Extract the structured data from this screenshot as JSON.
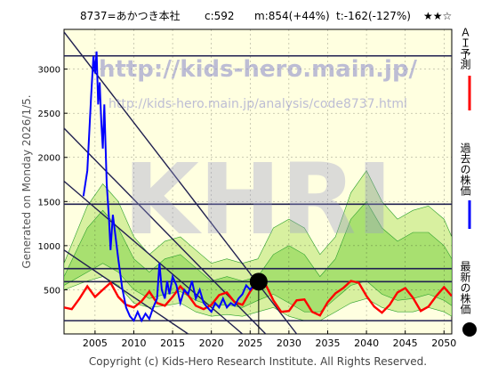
{
  "header": {
    "code_name": "8737=あかつき本社",
    "current": "c:592",
    "mid": "m:854(+44%)",
    "target": "t:-162(-127%)",
    "stars": "★★☆"
  },
  "side_label": "Generated on Monday 2026/1/5.",
  "footer": "Copyright (c) Kids-Hero Research Institute. All Rights Reserved.",
  "watermark": {
    "url1": "http://kids-hero.main.jp/",
    "url2": "http://kids-hero.main.jp/analysis/code8737.html",
    "logo": "KHRI"
  },
  "legend": [
    {
      "label": "ＡＩ予測",
      "color": "#ff0000",
      "shape": "line"
    },
    {
      "label": "過去の株価",
      "color": "#0000ff",
      "shape": "line"
    },
    {
      "label": "最新の株価",
      "color": "#000000",
      "shape": "dot"
    }
  ],
  "colors": {
    "background": "#ffffe0",
    "band_outer": "#d8f0a0",
    "band_inner": "#a8e070",
    "band_lines": "#2ca02c",
    "trend_lines": "#202050",
    "history": "#0000ff",
    "forecast": "#ff0000"
  },
  "chart_data": {
    "type": "line",
    "xlim": [
      2001,
      2051
    ],
    "ylim": [
      0,
      3450
    ],
    "xticks": [
      2005,
      2010,
      2015,
      2020,
      2025,
      2030,
      2035,
      2040,
      2045,
      2050
    ],
    "yticks": [
      500,
      1000,
      1500,
      2000,
      2500,
      3000
    ],
    "horizontal_levels": [
      150,
      592,
      740,
      1470,
      3150
    ],
    "latest": {
      "x": 2026.1,
      "y": 592
    },
    "trend_lines": [
      {
        "x": [
          2001,
          2031
        ],
        "y": [
          3420,
          0
        ]
      },
      {
        "x": [
          2001,
          2027
        ],
        "y": [
          2330,
          0
        ]
      },
      {
        "x": [
          2001,
          2024
        ],
        "y": [
          1730,
          0
        ]
      },
      {
        "x": [
          2001,
          2017
        ],
        "y": [
          950,
          0
        ]
      }
    ],
    "history": {
      "x": [
        2003.5,
        2004,
        2004.5,
        2004.8,
        2005,
        2005.2,
        2005.4,
        2005.6,
        2005.8,
        2006,
        2006.2,
        2006.5,
        2006.8,
        2007,
        2007.3,
        2008,
        2008.5,
        2009,
        2009.5,
        2010,
        2010.5,
        2011,
        2011.5,
        2012,
        2012.5,
        2013,
        2013.3,
        2013.6,
        2014,
        2014.3,
        2014.6,
        2015,
        2015.5,
        2016,
        2016.5,
        2017,
        2017.5,
        2018,
        2018.5,
        2019,
        2019.5,
        2020,
        2020.5,
        2021,
        2021.5,
        2022,
        2022.5,
        2023,
        2023.5,
        2024,
        2024.5,
        2025,
        2025.5,
        2026
      ],
      "y": [
        1560,
        1850,
        2700,
        3150,
        2950,
        3200,
        2600,
        2850,
        2400,
        2100,
        2600,
        1700,
        1300,
        950,
        1350,
        850,
        520,
        300,
        200,
        150,
        250,
        150,
        230,
        170,
        300,
        400,
        800,
        500,
        400,
        600,
        450,
        650,
        550,
        350,
        500,
        450,
        600,
        400,
        500,
        350,
        300,
        250,
        350,
        300,
        400,
        300,
        350,
        320,
        400,
        450,
        550,
        500,
        560,
        592
      ]
    },
    "forecast": {
      "x": [
        2001,
        2002,
        2003,
        2004,
        2005,
        2006,
        2007,
        2008,
        2009,
        2010,
        2011,
        2012,
        2013,
        2014,
        2015,
        2016,
        2017,
        2018,
        2019,
        2020,
        2021,
        2022,
        2023,
        2024,
        2025,
        2026,
        2027,
        2028,
        2029,
        2030,
        2031,
        2032,
        2033,
        2034,
        2035,
        2036,
        2037,
        2038,
        2039,
        2040,
        2041,
        2042,
        2043,
        2044,
        2045,
        2046,
        2047,
        2048,
        2049,
        2050,
        2051
      ],
      "y": [
        300,
        280,
        400,
        540,
        420,
        500,
        580,
        420,
        330,
        300,
        370,
        480,
        350,
        320,
        420,
        540,
        440,
        320,
        280,
        330,
        440,
        470,
        360,
        330,
        480,
        600,
        560,
        380,
        250,
        260,
        380,
        390,
        250,
        210,
        360,
        460,
        520,
        600,
        580,
        430,
        310,
        240,
        330,
        470,
        520,
        410,
        260,
        310,
        430,
        530,
        430
      ]
    },
    "band_outer": {
      "x": [
        2001,
        2004,
        2006,
        2008,
        2010,
        2012,
        2014,
        2016,
        2018,
        2020,
        2022,
        2024,
        2026,
        2028,
        2030,
        2032,
        2034,
        2036,
        2038,
        2040,
        2042,
        2044,
        2046,
        2048,
        2050,
        2051
      ],
      "upper": [
        800,
        1450,
        1700,
        1500,
        1100,
        900,
        1050,
        1100,
        950,
        800,
        850,
        800,
        850,
        1200,
        1300,
        1200,
        900,
        1100,
        1600,
        1850,
        1500,
        1300,
        1400,
        1450,
        1300,
        1100
      ],
      "lower": [
        500,
        600,
        650,
        550,
        350,
        300,
        320,
        350,
        250,
        200,
        220,
        200,
        250,
        300,
        200,
        150,
        150,
        250,
        350,
        400,
        300,
        250,
        250,
        300,
        250,
        200
      ]
    },
    "band_inner": {
      "x": [
        2001,
        2004,
        2006,
        2008,
        2010,
        2012,
        2014,
        2016,
        2018,
        2020,
        2022,
        2024,
        2026,
        2028,
        2030,
        2032,
        2034,
        2036,
        2038,
        2040,
        2042,
        2044,
        2046,
        2048,
        2050,
        2051
      ],
      "upper": [
        650,
        1200,
        1400,
        1200,
        850,
        700,
        850,
        900,
        750,
        600,
        650,
        600,
        650,
        900,
        1000,
        900,
        650,
        850,
        1300,
        1500,
        1200,
        1050,
        1150,
        1150,
        1000,
        850
      ],
      "lower": [
        550,
        700,
        800,
        700,
        500,
        400,
        450,
        480,
        380,
        320,
        330,
        300,
        380,
        450,
        350,
        250,
        250,
        400,
        550,
        600,
        450,
        380,
        400,
        450,
        380,
        320
      ]
    }
  }
}
